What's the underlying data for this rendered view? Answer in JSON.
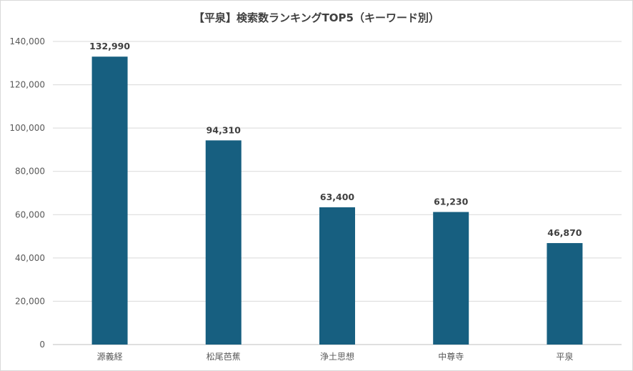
{
  "chart_data": {
    "type": "bar",
    "title": "【平泉】検索数ランキングTOP5（キーワード別）",
    "categories": [
      "源義経",
      "松尾芭蕉",
      "浄土思想",
      "中尊寺",
      "平泉"
    ],
    "values": [
      132990,
      94310,
      63400,
      61230,
      46870
    ],
    "data_labels": [
      "132,990",
      "94,310",
      "63,400",
      "61,230",
      "46,870"
    ],
    "y_ticks": [
      "0",
      "20,000",
      "40,000",
      "60,000",
      "80,000",
      "100,000",
      "120,000",
      "140,000"
    ],
    "ylim": [
      0,
      140000
    ],
    "grid": true,
    "legend": "none",
    "bar_color": "#175f80",
    "grid_color": "#d9d9d9"
  }
}
